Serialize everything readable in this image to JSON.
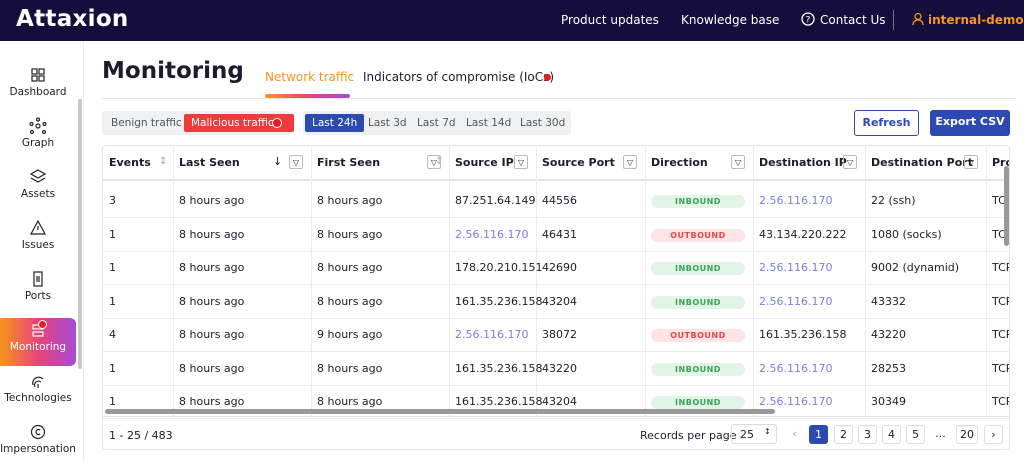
{
  "header": {
    "logo": "Attaxion",
    "links": [
      "Product updates",
      "Knowledge base",
      "Contact Us"
    ],
    "user": "internal-demo"
  },
  "sidebar": [
    "Dashboard",
    "Graph",
    "Assets",
    "Issues",
    "Ports",
    "Monitoring",
    "Technologies",
    "Impersonation"
  ],
  "page": {
    "title": "Monitoring",
    "tabs": [
      "Network traffic",
      "Indicators of compromise (IoCs)"
    ]
  },
  "filters": {
    "traffic": [
      "Benign traffic",
      "Malicious traffic"
    ],
    "ranges": [
      "Last 24h",
      "Last 3d",
      "Last 7d",
      "Last 14d",
      "Last 30d"
    ],
    "buttons": [
      "Refresh",
      "Export CSV"
    ]
  },
  "table": {
    "columns": [
      "Events",
      "Last Seen",
      "First Seen",
      "Source IP",
      "Source Port",
      "Direction",
      "Destination IP",
      "Destination Port",
      "Protocol"
    ],
    "rows": [
      [
        "3",
        "8 hours ago",
        "8 hours ago",
        "87.251.64.149",
        "44556",
        "INBOUND",
        "2.56.116.170",
        "22 (ssh)",
        "TCP"
      ],
      [
        "1",
        "8 hours ago",
        "8 hours ago",
        "2.56.116.170",
        "46431",
        "OUTBOUND",
        "43.134.220.222",
        "1080 (socks)",
        "TCP"
      ],
      [
        "1",
        "8 hours ago",
        "8 hours ago",
        "178.20.210.151",
        "42690",
        "INBOUND",
        "2.56.116.170",
        "9002 (dynamid)",
        "TCP"
      ],
      [
        "1",
        "8 hours ago",
        "8 hours ago",
        "161.35.236.158",
        "43204",
        "INBOUND",
        "2.56.116.170",
        "43332",
        "TCP"
      ],
      [
        "4",
        "8 hours ago",
        "9 hours ago",
        "2.56.116.170",
        "38072",
        "OUTBOUND",
        "161.35.236.158",
        "43220",
        "TCP"
      ],
      [
        "1",
        "8 hours ago",
        "8 hours ago",
        "161.35.236.158",
        "43220",
        "INBOUND",
        "2.56.116.170",
        "28253",
        "TCP"
      ],
      [
        "1",
        "8 hours ago",
        "8 hours ago",
        "161.35.236.158",
        "43204",
        "INBOUND",
        "2.56.116.170",
        "30349",
        "TCP"
      ]
    ]
  },
  "footer": {
    "range": "1 - 25 / 483",
    "per_page_label": "Records per page",
    "per_page": "25",
    "pages": [
      "1",
      "2",
      "3",
      "4",
      "5",
      "...",
      "20"
    ]
  }
}
